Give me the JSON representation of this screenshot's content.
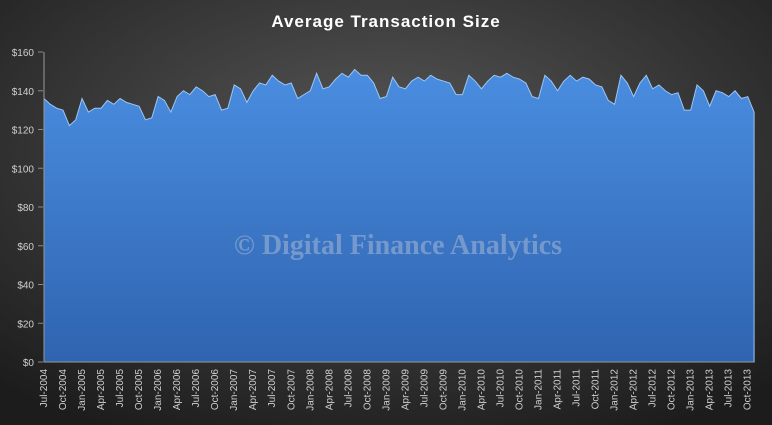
{
  "chart_data": {
    "type": "area",
    "title": "Average Transaction Size",
    "watermark": "© Digital Finance Analytics",
    "color": "#3f82d6",
    "categories": [
      "Jul-2004",
      null,
      null,
      "Oct-2004",
      null,
      null,
      "Jan-2005",
      null,
      null,
      "Apr-2005",
      null,
      null,
      "Jul-2005",
      null,
      null,
      "Oct-2005",
      null,
      null,
      "Jan-2006",
      null,
      null,
      "Apr-2006",
      null,
      null,
      "Jul-2006",
      null,
      null,
      "Oct-2006",
      null,
      null,
      "Jan-2007",
      null,
      null,
      "Apr-2007",
      null,
      null,
      "Jul-2007",
      null,
      null,
      "Oct-2007",
      null,
      null,
      "Jan-2008",
      null,
      null,
      "Apr-2008",
      null,
      null,
      "Jul-2008",
      null,
      null,
      "Oct-2008",
      null,
      null,
      "Jan-2009",
      null,
      null,
      "Apr-2009",
      null,
      null,
      "Jul-2009",
      null,
      null,
      "Oct-2009",
      null,
      null,
      "Jan-2010",
      null,
      null,
      "Apr-2010",
      null,
      null,
      "Jul-2010",
      null,
      null,
      "Oct-2010",
      null,
      null,
      "Jan-2011",
      null,
      null,
      "Apr-2011",
      null,
      null,
      "Jul-2011",
      null,
      null,
      "Oct-2011",
      null,
      null,
      "Jan-2012",
      null,
      null,
      "Apr-2012",
      null,
      null,
      "Jul-2012",
      null,
      null,
      "Oct-2012",
      null,
      null,
      "Jan-2013",
      null,
      null,
      "Apr-2013",
      null,
      null,
      "Jul-2013",
      null,
      null,
      "Oct-2013",
      null
    ],
    "values": [
      136,
      133,
      131,
      130,
      122,
      125,
      136,
      129,
      131,
      131,
      135,
      133,
      136,
      134,
      133,
      132,
      125,
      126,
      137,
      135,
      129,
      137,
      140,
      138,
      142,
      140,
      137,
      138,
      130,
      131,
      143,
      141,
      134,
      140,
      144,
      143,
      148,
      145,
      143,
      144,
      136,
      138,
      140,
      149,
      141,
      142,
      146,
      149,
      147,
      151,
      148,
      148,
      144,
      136,
      137,
      147,
      142,
      141,
      145,
      147,
      145,
      148,
      146,
      145,
      144,
      138,
      138,
      148,
      145,
      141,
      145,
      148,
      147,
      149,
      147,
      146,
      144,
      137,
      136,
      148,
      145,
      140,
      145,
      148,
      145,
      147,
      146,
      143,
      142,
      135,
      133,
      148,
      144,
      137,
      144,
      148,
      141,
      143,
      140,
      138,
      139,
      130,
      130,
      143,
      140,
      132,
      140,
      139,
      137,
      140,
      136,
      137,
      129
    ],
    "ylim": [
      0,
      160
    ],
    "yticks": [
      {
        "value": 0,
        "label": "$0"
      },
      {
        "value": 20,
        "label": "$20"
      },
      {
        "value": 40,
        "label": "$40"
      },
      {
        "value": 60,
        "label": "$60"
      },
      {
        "value": 80,
        "label": "$80"
      },
      {
        "value": 100,
        "label": "$100"
      },
      {
        "value": 120,
        "label": "$120"
      },
      {
        "value": 140,
        "label": "$140"
      },
      {
        "value": 160,
        "label": "$160"
      }
    ]
  }
}
